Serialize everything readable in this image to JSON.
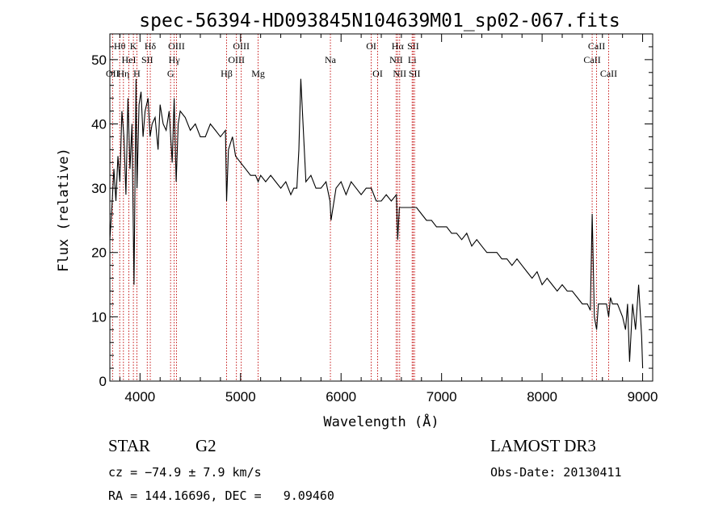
{
  "chart_data": {
    "type": "line",
    "title": "spec-56394-HD093845N104639M01_sp02-067.fits",
    "xlabel": "Wavelength (Å)",
    "ylabel": "Flux (relative)",
    "xlim": [
      3700,
      9100
    ],
    "ylim": [
      0,
      54
    ],
    "x_ticks": [
      4000,
      5000,
      6000,
      7000,
      8000,
      9000
    ],
    "y_ticks": [
      0,
      10,
      20,
      30,
      40,
      50
    ],
    "series": [
      {
        "name": "flux",
        "x": [
          3700,
          3720,
          3740,
          3760,
          3780,
          3800,
          3820,
          3840,
          3860,
          3880,
          3900,
          3920,
          3940,
          3960,
          3970,
          3990,
          4010,
          4030,
          4050,
          4080,
          4100,
          4120,
          4150,
          4180,
          4200,
          4230,
          4260,
          4290,
          4320,
          4340,
          4360,
          4380,
          4400,
          4450,
          4500,
          4550,
          4600,
          4650,
          4700,
          4750,
          4800,
          4850,
          4861,
          4880,
          4920,
          4950,
          5000,
          5050,
          5100,
          5150,
          5175,
          5200,
          5250,
          5300,
          5350,
          5400,
          5450,
          5500,
          5530,
          5560,
          5580,
          5600,
          5650,
          5700,
          5750,
          5800,
          5850,
          5890,
          5900,
          5950,
          6000,
          6050,
          6100,
          6150,
          6200,
          6250,
          6300,
          6350,
          6400,
          6450,
          6500,
          6550,
          6563,
          6580,
          6600,
          6650,
          6700,
          6750,
          6800,
          6850,
          6900,
          6950,
          7000,
          7050,
          7100,
          7150,
          7200,
          7250,
          7300,
          7350,
          7400,
          7450,
          7500,
          7550,
          7600,
          7650,
          7700,
          7750,
          7800,
          7850,
          7900,
          7950,
          8000,
          8050,
          8100,
          8150,
          8200,
          8250,
          8300,
          8350,
          8400,
          8450,
          8480,
          8498,
          8520,
          8542,
          8560,
          8600,
          8640,
          8662,
          8680,
          8700,
          8750,
          8800,
          8830,
          8850,
          8870,
          8900,
          8930,
          8960,
          8990,
          9000
        ],
        "values": [
          22,
          27,
          33,
          28,
          35,
          31,
          42,
          38,
          29,
          44,
          33,
          40,
          15,
          47,
          30,
          43,
          45,
          38,
          42,
          44,
          38,
          40,
          41,
          36,
          43,
          40,
          39,
          42,
          34,
          44,
          31,
          40,
          42,
          41,
          39,
          40,
          38,
          38,
          40,
          39,
          38,
          39,
          28,
          36,
          38,
          35,
          34,
          33,
          32,
          32,
          31,
          32,
          31,
          32,
          31,
          30,
          31,
          29,
          30,
          30,
          36,
          47,
          31,
          32,
          30,
          30,
          31,
          28,
          25,
          30,
          31,
          29,
          31,
          30,
          29,
          30,
          30,
          28,
          28,
          29,
          28,
          29,
          22,
          27,
          27,
          27,
          27,
          27,
          26,
          25,
          25,
          24,
          24,
          24,
          23,
          23,
          22,
          23,
          21,
          22,
          21,
          20,
          20,
          20,
          19,
          19,
          18,
          19,
          18,
          17,
          16,
          17,
          15,
          16,
          15,
          14,
          15,
          14,
          14,
          13,
          12,
          12,
          11,
          26,
          10,
          8,
          12,
          12,
          12,
          10,
          13,
          12,
          12,
          10,
          8,
          12,
          3,
          12,
          8,
          15,
          7,
          2
        ]
      }
    ],
    "spectral_lines": [
      {
        "label": "OII",
        "wavelength": 3727,
        "row": 3
      },
      {
        "label": "Hθ",
        "wavelength": 3798,
        "row": 1
      },
      {
        "label": "Hη",
        "wavelength": 3835,
        "row": 3
      },
      {
        "label": "HeI",
        "wavelength": 3889,
        "row": 2
      },
      {
        "label": "K",
        "wavelength": 3934,
        "row": 1
      },
      {
        "label": "H",
        "wavelength": 3969,
        "row": 3
      },
      {
        "label": "SII",
        "wavelength": 4072,
        "row": 2
      },
      {
        "label": "Hδ",
        "wavelength": 4102,
        "row": 1
      },
      {
        "label": "G",
        "wavelength": 4304,
        "row": 3
      },
      {
        "label": "Hγ",
        "wavelength": 4340,
        "row": 2
      },
      {
        "label": "OIII",
        "wavelength": 4363,
        "row": 1
      },
      {
        "label": "Hβ",
        "wavelength": 4861,
        "row": 3
      },
      {
        "label": "OIII",
        "wavelength": 4959,
        "row": 2
      },
      {
        "label": "OIII",
        "wavelength": 5007,
        "row": 1
      },
      {
        "label": "Mg",
        "wavelength": 5175,
        "row": 3
      },
      {
        "label": "Na",
        "wavelength": 5894,
        "row": 2
      },
      {
        "label": "OI",
        "wavelength": 6300,
        "row": 1
      },
      {
        "label": "OI",
        "wavelength": 6364,
        "row": 3
      },
      {
        "label": "NII",
        "wavelength": 6548,
        "row": 2
      },
      {
        "label": "Hα",
        "wavelength": 6563,
        "row": 1
      },
      {
        "label": "NII",
        "wavelength": 6583,
        "row": 3
      },
      {
        "label": "Li",
        "wavelength": 6707,
        "row": 2
      },
      {
        "label": "SII",
        "wavelength": 6717,
        "row": 1
      },
      {
        "label": "SII",
        "wavelength": 6731,
        "row": 3
      },
      {
        "label": "CaII",
        "wavelength": 8498,
        "row": 2
      },
      {
        "label": "CaII",
        "wavelength": 8542,
        "row": 1
      },
      {
        "label": "CaII",
        "wavelength": 8662,
        "row": 3
      }
    ]
  },
  "info": {
    "class": "STAR",
    "subclass": "G2",
    "cz": "cz = −74.9 ± 7.9 km/s",
    "coords": "RA = 144.16696, DEC =   9.09460",
    "survey": "LAMOST DR3",
    "obs_date": "Obs-Date: 20130411"
  }
}
